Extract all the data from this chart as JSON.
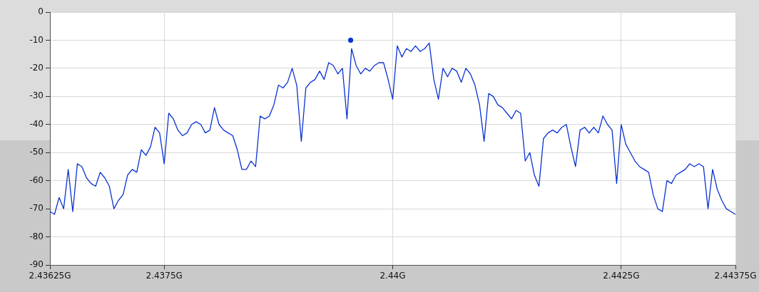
{
  "chart_data": {
    "type": "line",
    "xlim": [
      2.43625,
      2.44375
    ],
    "ylim": [
      -90,
      0
    ],
    "xticks": [
      {
        "value": 2.43625,
        "label": "2.43625G"
      },
      {
        "value": 2.4375,
        "label": "2.4375G"
      },
      {
        "value": 2.44,
        "label": "2.44G"
      },
      {
        "value": 2.4425,
        "label": "2.4425G"
      },
      {
        "value": 2.44375,
        "label": "2.44375G"
      }
    ],
    "yticks": [
      0,
      -10,
      -20,
      -30,
      -40,
      -50,
      -60,
      -70,
      -80,
      -90
    ],
    "grid": true,
    "legend": false,
    "x": [
      2.43625,
      2.4363,
      2.43635,
      2.4364,
      2.43645,
      2.4365,
      2.43655,
      2.4366,
      2.43665,
      2.4367,
      2.43675,
      2.4368,
      2.43685,
      2.4369,
      2.43695,
      2.437,
      2.43705,
      2.4371,
      2.43715,
      2.4372,
      2.43725,
      2.4373,
      2.43735,
      2.4374,
      2.43745,
      2.4375,
      2.43755,
      2.4376,
      2.43765,
      2.4377,
      2.43775,
      2.4378,
      2.43785,
      2.4379,
      2.43795,
      2.438,
      2.43805,
      2.4381,
      2.43815,
      2.4382,
      2.43825,
      2.4383,
      2.43835,
      2.4384,
      2.43845,
      2.4385,
      2.43855,
      2.4386,
      2.43865,
      2.4387,
      2.43875,
      2.4388,
      2.43885,
      2.4389,
      2.43895,
      2.439,
      2.43905,
      2.4391,
      2.43915,
      2.4392,
      2.43925,
      2.4393,
      2.43935,
      2.4394,
      2.43945,
      2.4395,
      2.43955,
      2.4396,
      2.43965,
      2.4397,
      2.43975,
      2.4398,
      2.43985,
      2.4399,
      2.43995,
      2.44,
      2.44005,
      2.4401,
      2.44015,
      2.4402,
      2.44025,
      2.4403,
      2.44035,
      2.4404,
      2.44045,
      2.4405,
      2.44055,
      2.4406,
      2.44065,
      2.4407,
      2.44075,
      2.4408,
      2.44085,
      2.4409,
      2.44095,
      2.441,
      2.44105,
      2.4411,
      2.44115,
      2.4412,
      2.44125,
      2.4413,
      2.44135,
      2.4414,
      2.44145,
      2.4415,
      2.44155,
      2.4416,
      2.44165,
      2.4417,
      2.44175,
      2.4418,
      2.44185,
      2.4419,
      2.44195,
      2.442,
      2.44205,
      2.4421,
      2.44215,
      2.4422,
      2.44225,
      2.4423,
      2.44235,
      2.4424,
      2.44245,
      2.4425,
      2.44255,
      2.4426,
      2.44265,
      2.4427,
      2.44275,
      2.4428,
      2.44285,
      2.4429,
      2.44295,
      2.443,
      2.44305,
      2.4431,
      2.44315,
      2.4432,
      2.44325,
      2.4433,
      2.44335,
      2.4434,
      2.44345,
      2.4435,
      2.44355,
      2.4436,
      2.44365,
      2.4437,
      2.44375
    ],
    "series": [
      {
        "type": "line",
        "color": "#0a32d2",
        "marker": "none",
        "values": [
          -71,
          -72,
          -66,
          -70,
          -56,
          -71,
          -54,
          -55,
          -59,
          -61,
          -62,
          -57,
          -59,
          -62,
          -70,
          -67,
          -65,
          -58,
          -56,
          -57,
          -49,
          -51,
          -48,
          -41,
          -43,
          -54,
          -36,
          -38,
          -42,
          -44,
          -43,
          -40,
          -39,
          -40,
          -43,
          -42,
          -34,
          -40,
          -42,
          -43,
          -44,
          -49,
          -56,
          -56,
          -53,
          -55,
          -37,
          -38,
          -37,
          -33,
          -26,
          -27,
          -25,
          -20,
          -26,
          -46,
          -27,
          -25,
          -24,
          -21,
          -24,
          -18,
          -19,
          -22,
          -20,
          -38,
          -13,
          -19,
          -22,
          -20,
          -21,
          -19,
          -18,
          -18,
          -24,
          -31,
          -12,
          -16,
          -13,
          -14,
          -12,
          -14,
          -13,
          -11,
          -24,
          -31,
          -20,
          -23,
          -20,
          -21,
          -25,
          -20,
          -22,
          -26,
          -33,
          -46,
          -29,
          -30,
          -33,
          -34,
          -36,
          -38,
          -35,
          -36,
          -53,
          -50,
          -58,
          -62,
          -45,
          -43,
          -42,
          -43,
          -41,
          -40,
          -48,
          -55,
          -42,
          -41,
          -43,
          -41,
          -43,
          -37,
          -40,
          -42,
          -61,
          -40,
          -47,
          -50,
          -53,
          -55,
          -56,
          -57,
          -65,
          -70,
          -71,
          -60,
          -61,
          -58,
          -57,
          -56,
          -54,
          -55,
          -54,
          -55,
          -70,
          -56,
          -63,
          -67,
          -70,
          -71,
          -72
        ]
      },
      {
        "type": "scatter",
        "color": "#0a32d2",
        "marker": "circle",
        "x": [
          2.43954
        ],
        "values": [
          -10
        ]
      }
    ]
  }
}
